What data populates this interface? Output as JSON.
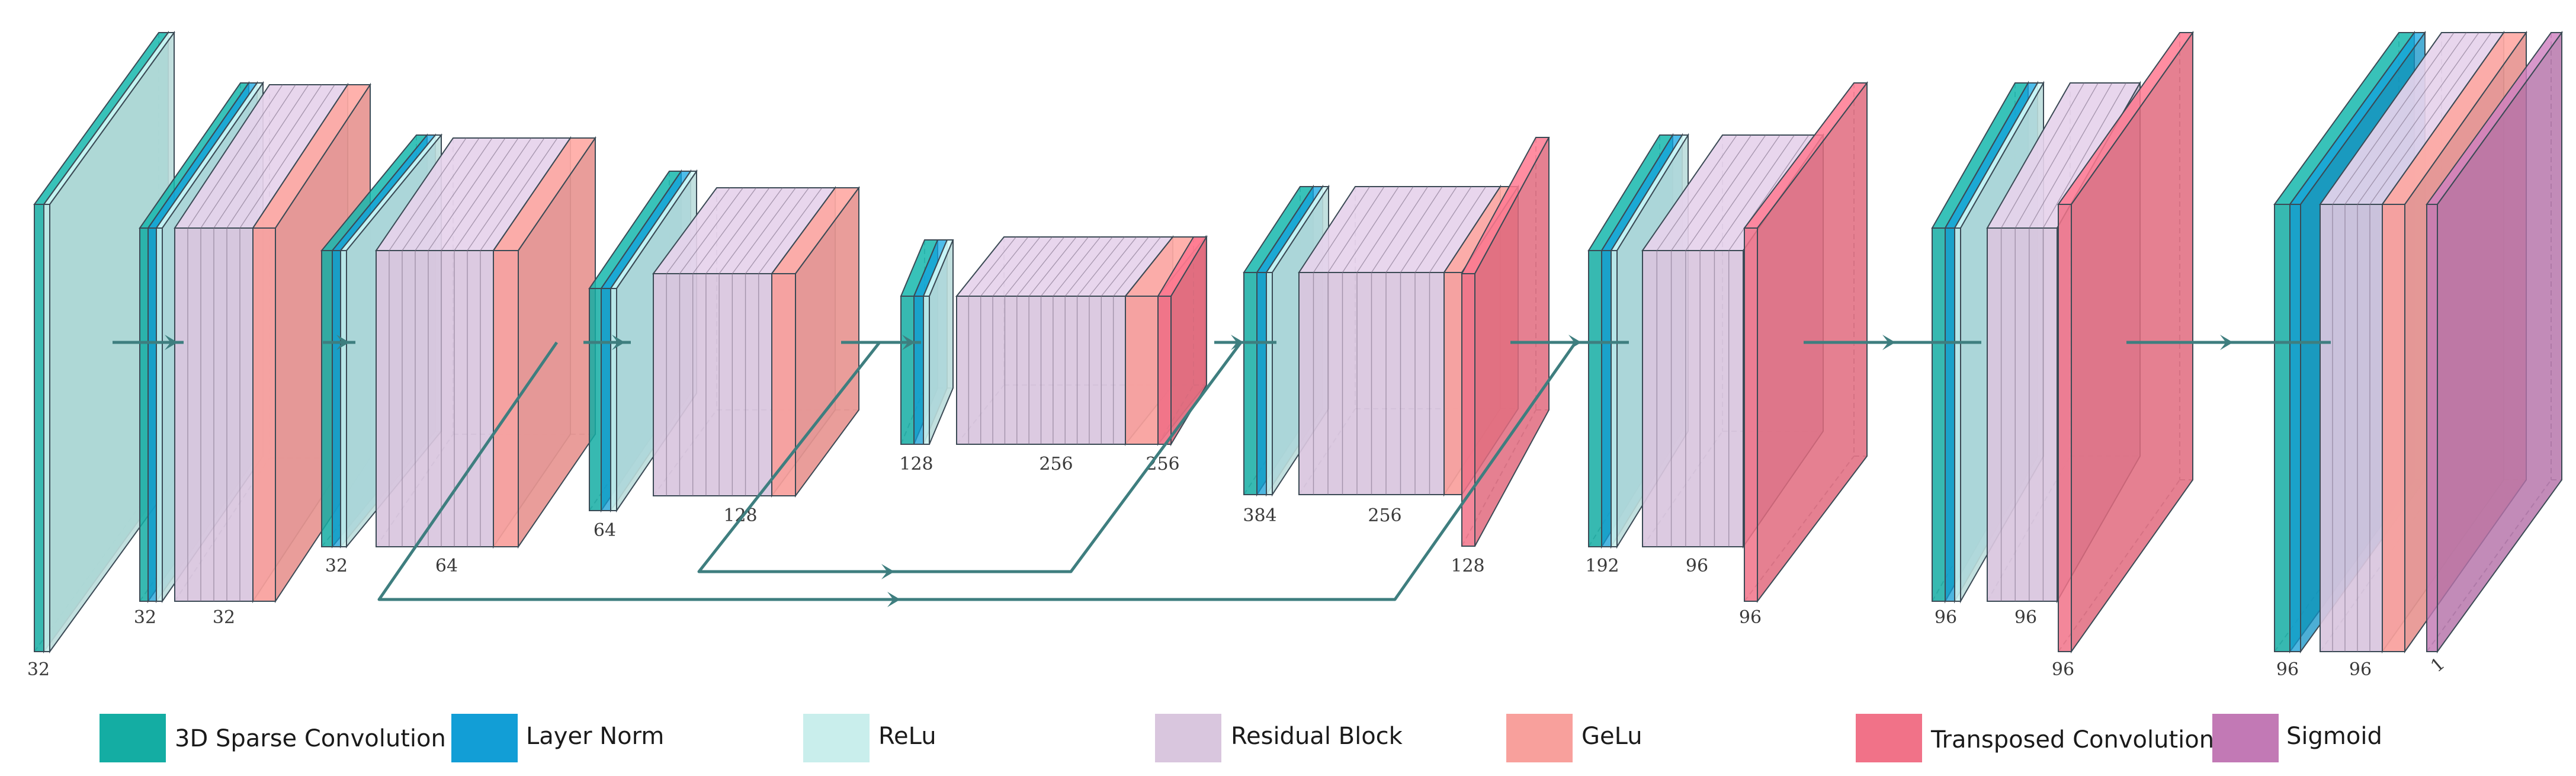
{
  "colors": {
    "sparse_conv": "#14ADA3",
    "layer_norm": "#129ED6",
    "relu": "#C9EEEC",
    "residual_block": "#D9C6DE",
    "gelu": "#F8A09C",
    "transposed_conv": "#F17288",
    "sigmoid": "#C279B5",
    "connection": "#3E7E7F"
  },
  "labels": {
    "b0_sc": "32",
    "b1_sc": "32",
    "b1_res": "32",
    "b2_sc": "32",
    "b2_res": "64",
    "b3_sc": "64",
    "b3_res": "128",
    "b4_sc": "128",
    "b4_res": "256",
    "b4_tc": "256",
    "b5_sc": "384",
    "b5_res": "256",
    "b5_tc": "128",
    "b6_sc": "192",
    "b6_res": "96",
    "b6_tc": "96",
    "b7_sc": "96",
    "b7_res": "96",
    "b7_tc": "96",
    "b8_sc": "96",
    "b8_res": "96",
    "b8_sig": "1"
  },
  "legend": [
    {
      "key": "sparse_conv",
      "label": "3D Sparse Convolution",
      "color": "#14ADA3"
    },
    {
      "key": "layer_norm",
      "label": "Layer Norm",
      "color": "#129ED6"
    },
    {
      "key": "relu",
      "label": "ReLu",
      "color": "#C9EEEC"
    },
    {
      "key": "residual_block",
      "label": "Residual Block",
      "color": "#D9C6DE"
    },
    {
      "key": "gelu",
      "label": "GeLu",
      "color": "#F8A09C"
    },
    {
      "key": "transposed_conv",
      "label": "Transposed Convolution",
      "color": "#F17288"
    },
    {
      "key": "sigmoid",
      "label": "Sigmoid",
      "color": "#C279B5"
    }
  ]
}
